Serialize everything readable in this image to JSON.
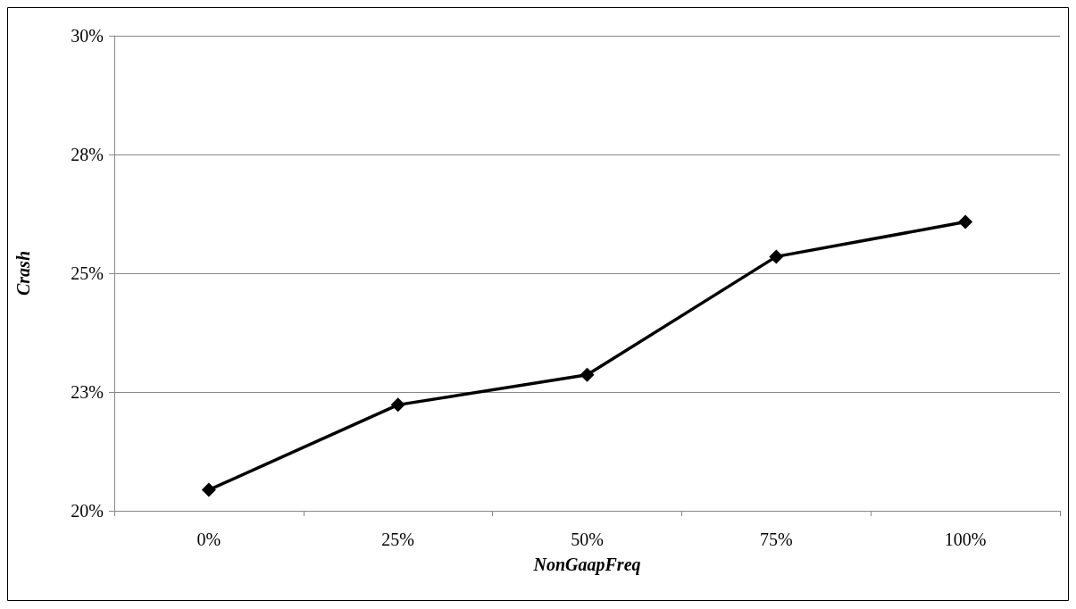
{
  "chart_data": {
    "type": "line",
    "xlabel": "NonGaapFreq",
    "ylabel": "Crash",
    "categories": [
      "0%",
      "25%",
      "50%",
      "75%",
      "100%"
    ],
    "series": [
      {
        "color": "#000000",
        "values": [
          20.44,
          22.23,
          22.86,
          25.35,
          26.08
        ]
      }
    ],
    "ylim": [
      20,
      30
    ],
    "yticks": [
      {
        "value": 20,
        "label": "20%"
      },
      {
        "value": 22.5,
        "label": "23%"
      },
      {
        "value": 25,
        "label": "25%"
      },
      {
        "value": 27.5,
        "label": "28%"
      },
      {
        "value": 30,
        "label": "30%"
      }
    ],
    "grid": "y",
    "marker": "diamond",
    "line_style": "solid"
  }
}
